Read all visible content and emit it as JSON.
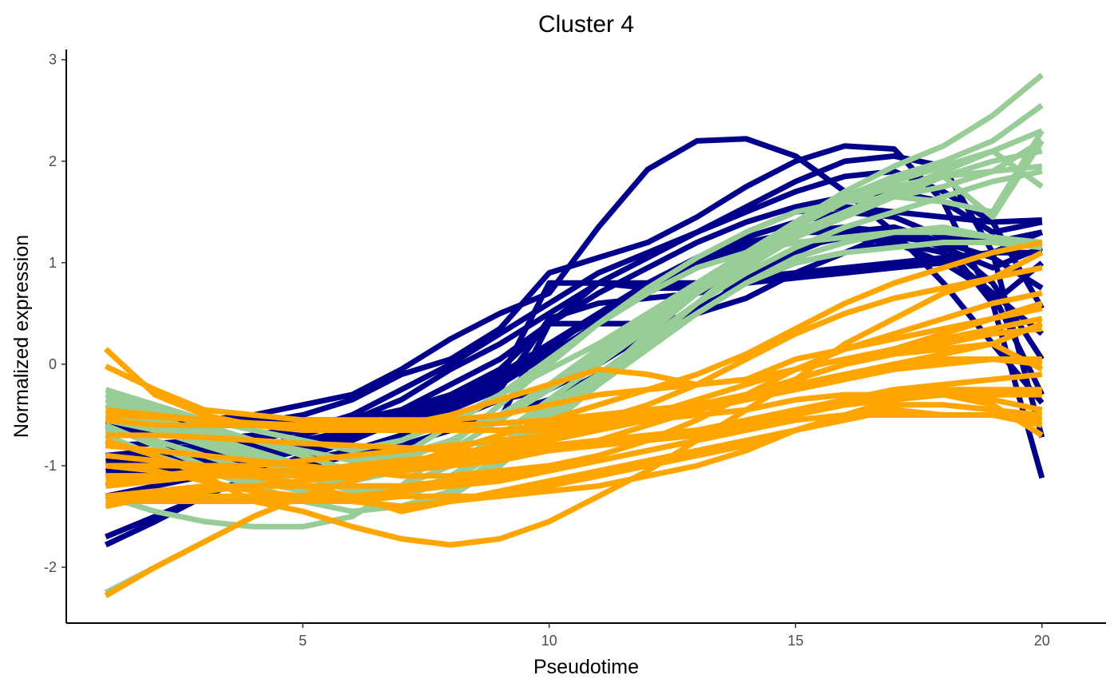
{
  "chart_data": {
    "type": "line",
    "title": "Cluster 4",
    "xlabel": "Pseudotime",
    "ylabel": "Normalized expression",
    "xlim": [
      0.2,
      21.3
    ],
    "ylim": [
      -2.55,
      3.1
    ],
    "xticks": [
      5,
      10,
      15,
      20
    ],
    "yticks": [
      -2,
      -1,
      0,
      1,
      2,
      3
    ],
    "grid": false,
    "legend": "none",
    "x": [
      1,
      2,
      3,
      4,
      5,
      6,
      7,
      8,
      9,
      10,
      11,
      12,
      13,
      14,
      15,
      16,
      17,
      18,
      19,
      20
    ],
    "group_colors": {
      "navy": "#00008b",
      "green": "#98cd98",
      "orange": "#ffa500"
    },
    "series": [
      {
        "group": "navy",
        "values": [
          -0.6,
          -0.6,
          -0.55,
          -0.5,
          -0.4,
          -0.3,
          -0.05,
          0.25,
          0.5,
          0.7,
          1.35,
          1.92,
          2.2,
          2.22,
          2.05,
          1.7,
          1.3,
          0.8,
          0.2,
          -0.38
        ]
      },
      {
        "group": "navy",
        "values": [
          -0.6,
          -0.6,
          -0.6,
          -0.58,
          -0.5,
          -0.35,
          -0.1,
          0.05,
          0.35,
          0.9,
          1.05,
          1.2,
          1.45,
          1.75,
          2.0,
          2.15,
          2.12,
          1.6,
          0.6,
          -1.12
        ]
      },
      {
        "group": "navy",
        "values": [
          -0.9,
          -0.85,
          -0.8,
          -0.75,
          -0.65,
          -0.5,
          -0.25,
          0.0,
          0.3,
          0.6,
          0.9,
          1.1,
          1.3,
          1.55,
          1.8,
          2.0,
          2.05,
          1.95,
          1.1,
          -0.72
        ]
      },
      {
        "group": "navy",
        "values": [
          -1.0,
          -0.95,
          -0.9,
          -0.85,
          -0.7,
          -0.55,
          -0.35,
          -0.05,
          0.2,
          0.5,
          0.8,
          1.05,
          1.3,
          1.5,
          1.7,
          1.85,
          1.9,
          1.7,
          1.4,
          0.55
        ]
      },
      {
        "group": "navy",
        "values": [
          -1.1,
          -1.05,
          -1.0,
          -0.95,
          -0.85,
          -0.7,
          -0.45,
          -0.2,
          0.05,
          0.4,
          0.7,
          0.95,
          1.2,
          1.4,
          1.55,
          1.65,
          1.7,
          1.6,
          1.3,
          1.4
        ]
      },
      {
        "group": "navy",
        "values": [
          -1.7,
          -1.5,
          -1.3,
          -1.1,
          -0.9,
          -0.7,
          -0.5,
          -0.35,
          -0.15,
          0.15,
          0.5,
          0.8,
          1.05,
          1.25,
          1.4,
          1.5,
          1.45,
          1.25,
          1.2,
          1.3
        ]
      },
      {
        "group": "navy",
        "values": [
          -1.78,
          -1.55,
          -1.3,
          -1.1,
          -0.92,
          -0.75,
          -0.55,
          -0.35,
          -0.1,
          0.2,
          0.45,
          0.7,
          0.95,
          1.15,
          1.3,
          1.35,
          1.3,
          1.15,
          0.95,
          1.15
        ]
      },
      {
        "group": "navy",
        "values": [
          -0.8,
          -0.78,
          -0.75,
          -0.7,
          -0.62,
          -0.55,
          -0.45,
          -0.3,
          -0.05,
          0.4,
          0.8,
          0.75,
          0.75,
          0.8,
          0.85,
          0.9,
          0.95,
          1.0,
          1.1,
          1.3
        ]
      },
      {
        "group": "navy",
        "values": [
          -0.95,
          -0.9,
          -0.85,
          -0.8,
          -0.75,
          -0.65,
          -0.5,
          -0.35,
          -0.15,
          0.8,
          0.8,
          0.8,
          0.8,
          0.85,
          0.9,
          0.95,
          1.0,
          1.05,
          1.1,
          1.1
        ]
      },
      {
        "group": "navy",
        "values": [
          -1.05,
          -1.0,
          -0.95,
          -0.9,
          -0.8,
          -0.7,
          -0.6,
          -0.45,
          -0.25,
          0.45,
          0.6,
          0.65,
          0.7,
          0.8,
          1.0,
          1.1,
          1.2,
          1.0,
          0.7,
          0.3
        ]
      },
      {
        "group": "navy",
        "values": [
          -1.2,
          -1.1,
          -1.05,
          -1.0,
          -0.95,
          -0.85,
          -0.7,
          -0.55,
          -0.35,
          -0.25,
          0.0,
          0.3,
          0.55,
          0.8,
          1.1,
          1.3,
          1.35,
          1.2,
          0.8,
          0.05
        ]
      },
      {
        "group": "navy",
        "values": [
          -1.3,
          -1.2,
          -1.1,
          -1.05,
          -1.0,
          -0.9,
          -0.8,
          -0.65,
          -0.5,
          -0.35,
          -0.1,
          0.2,
          0.5,
          0.85,
          1.15,
          1.25,
          1.2,
          1.1,
          0.7,
          -0.3
        ]
      },
      {
        "group": "navy",
        "values": [
          -0.55,
          -0.55,
          -0.55,
          -0.55,
          -0.55,
          -0.55,
          -0.55,
          -0.55,
          -0.55,
          0.4,
          0.4,
          0.4,
          0.5,
          0.65,
          0.9,
          1.1,
          1.3,
          1.2,
          0.6,
          1.0
        ]
      },
      {
        "group": "navy",
        "values": [
          -0.65,
          -0.65,
          -0.6,
          -0.6,
          -0.6,
          -0.6,
          -0.55,
          -0.4,
          -0.2,
          0.1,
          0.4,
          0.7,
          1.0,
          1.3,
          1.5,
          1.55,
          1.5,
          1.45,
          1.4,
          1.42
        ]
      },
      {
        "group": "navy",
        "values": [
          -0.9,
          -0.9,
          -0.9,
          -0.85,
          -0.8,
          -0.7,
          -0.55,
          -0.35,
          -0.1,
          0.2,
          0.5,
          0.75,
          1.0,
          1.2,
          1.3,
          1.3,
          1.25,
          1.2,
          1.05,
          0.75
        ]
      },
      {
        "group": "green",
        "values": [
          -0.25,
          -0.4,
          -0.55,
          -0.65,
          -0.75,
          -0.85,
          -0.75,
          -0.55,
          -0.3,
          -0.05,
          0.2,
          0.5,
          0.8,
          1.1,
          1.4,
          1.7,
          1.95,
          2.15,
          2.45,
          2.85
        ]
      },
      {
        "group": "green",
        "values": [
          -0.3,
          -0.45,
          -0.6,
          -0.75,
          -0.9,
          -1.05,
          -0.95,
          -0.75,
          -0.5,
          -0.2,
          0.1,
          0.45,
          0.8,
          1.1,
          1.4,
          1.65,
          1.85,
          2.0,
          2.2,
          2.55
        ]
      },
      {
        "group": "green",
        "values": [
          -0.35,
          -0.5,
          -0.7,
          -0.85,
          -1.0,
          -1.15,
          -1.05,
          -0.85,
          -0.55,
          -0.25,
          0.05,
          0.4,
          0.75,
          1.05,
          1.35,
          1.6,
          1.8,
          1.95,
          2.1,
          2.3
        ]
      },
      {
        "group": "green",
        "values": [
          -0.4,
          -0.55,
          -0.75,
          -0.95,
          -1.1,
          -1.25,
          -1.2,
          -1.0,
          -0.7,
          -0.4,
          -0.1,
          0.25,
          0.6,
          0.95,
          1.25,
          1.5,
          1.7,
          1.85,
          2.0,
          2.1
        ]
      },
      {
        "group": "green",
        "values": [
          -0.6,
          -0.8,
          -1.0,
          -1.15,
          -1.25,
          -1.35,
          -1.3,
          -1.15,
          -0.85,
          -0.5,
          -0.15,
          0.3,
          0.7,
          1.1,
          1.4,
          1.6,
          1.75,
          1.85,
          1.9,
          1.95
        ]
      },
      {
        "group": "green",
        "values": [
          -0.7,
          -0.9,
          -1.05,
          -1.2,
          -1.35,
          -1.45,
          -1.4,
          -1.25,
          -0.95,
          -0.55,
          -0.2,
          0.2,
          0.6,
          1.0,
          1.3,
          1.5,
          1.7,
          1.9,
          2.1,
          1.75
        ]
      },
      {
        "group": "green",
        "values": [
          -1.3,
          -1.45,
          -1.55,
          -1.6,
          -1.6,
          -1.5,
          -1.2,
          -0.8,
          -0.4,
          0.0,
          0.4,
          0.75,
          1.05,
          1.3,
          1.5,
          1.6,
          1.65,
          1.6,
          1.5,
          2.3
        ]
      },
      {
        "group": "green",
        "values": [
          -2.25,
          -2.0,
          -1.75,
          -1.5,
          -1.3,
          -1.1,
          -0.9,
          -0.6,
          -0.3,
          0.05,
          0.4,
          0.7,
          0.95,
          1.1,
          1.2,
          1.25,
          1.3,
          1.3,
          1.25,
          1.2
        ]
      },
      {
        "group": "green",
        "values": [
          -0.5,
          -0.6,
          -0.75,
          -0.9,
          -1.05,
          -1.2,
          -1.2,
          -1.0,
          -0.7,
          -0.35,
          0.0,
          0.35,
          0.7,
          1.0,
          1.3,
          1.5,
          1.65,
          1.75,
          1.9,
          2.2
        ]
      },
      {
        "group": "green",
        "values": [
          -0.55,
          -0.65,
          -0.8,
          -0.95,
          -1.1,
          -1.25,
          -1.3,
          -1.1,
          -0.8,
          -0.45,
          -0.1,
          0.25,
          0.6,
          0.9,
          1.15,
          1.35,
          1.5,
          1.65,
          1.8,
          1.9
        ]
      },
      {
        "group": "green",
        "values": [
          -0.45,
          -0.55,
          -0.65,
          -0.75,
          -0.85,
          -0.95,
          -0.9,
          -0.75,
          -0.5,
          -0.2,
          0.15,
          0.45,
          0.75,
          1.0,
          1.25,
          1.45,
          1.65,
          1.85,
          1.45,
          2.2
        ]
      },
      {
        "group": "green",
        "values": [
          -0.65,
          -0.75,
          -0.9,
          -1.05,
          -1.2,
          -1.35,
          -1.4,
          -1.25,
          -0.9,
          -0.5,
          -0.15,
          0.2,
          0.5,
          0.8,
          1.05,
          1.2,
          1.3,
          1.35,
          1.25,
          1.2
        ]
      },
      {
        "group": "green",
        "values": [
          -0.75,
          -0.9,
          -1.05,
          -1.15,
          -1.25,
          -1.35,
          -1.4,
          -1.3,
          -1.0,
          -0.6,
          -0.2,
          0.15,
          0.5,
          0.8,
          1.0,
          1.1,
          1.15,
          1.2,
          1.2,
          1.15
        ]
      },
      {
        "group": "orange",
        "values": [
          0.15,
          -0.3,
          -0.5,
          -0.6,
          -0.65,
          -0.65,
          -0.6,
          -0.5,
          -0.35,
          -0.2,
          -0.05,
          -0.1,
          -0.2,
          -0.15,
          0.05,
          0.15,
          0.25,
          0.35,
          0.45,
          0.6
        ]
      },
      {
        "group": "orange",
        "values": [
          -0.02,
          -0.25,
          -0.45,
          -0.5,
          -0.55,
          -0.55,
          -0.55,
          -0.55,
          -0.5,
          -0.4,
          -0.3,
          -0.25,
          -0.2,
          -0.15,
          -0.05,
          0.05,
          0.1,
          0.15,
          0.2,
          0.4
        ]
      },
      {
        "group": "orange",
        "values": [
          -2.28,
          -2.0,
          -1.75,
          -1.5,
          -1.3,
          -1.15,
          -1.0,
          -0.85,
          -0.7,
          -0.55,
          -0.4,
          -0.25,
          -0.1,
          0.1,
          0.35,
          0.6,
          0.8,
          0.95,
          1.1,
          1.2
        ]
      },
      {
        "group": "orange",
        "values": [
          -0.75,
          -0.9,
          -1.1,
          -1.35,
          -1.45,
          -1.6,
          -1.72,
          -1.78,
          -1.72,
          -1.55,
          -1.3,
          -1.05,
          -0.75,
          -0.45,
          -0.15,
          0.2,
          0.45,
          0.7,
          0.85,
          0.95
        ]
      },
      {
        "group": "orange",
        "values": [
          -1.4,
          -1.3,
          -1.25,
          -1.2,
          -1.15,
          -1.1,
          -1.0,
          -0.9,
          -0.8,
          -0.7,
          -0.55,
          -0.4,
          -0.2,
          0.05,
          0.3,
          0.5,
          0.65,
          0.75,
          0.85,
          1.1
        ]
      },
      {
        "group": "orange",
        "values": [
          -1.3,
          -1.25,
          -1.2,
          -1.2,
          -1.2,
          -1.2,
          -1.2,
          -1.15,
          -1.1,
          -1.0,
          -0.9,
          -0.75,
          -0.55,
          -0.3,
          -0.05,
          0.15,
          0.3,
          0.45,
          0.6,
          0.7
        ]
      },
      {
        "group": "orange",
        "values": [
          -1.2,
          -1.15,
          -1.1,
          -1.1,
          -1.1,
          -1.1,
          -1.05,
          -1.0,
          -0.95,
          -0.85,
          -0.75,
          -0.6,
          -0.45,
          -0.3,
          -0.15,
          0.0,
          0.1,
          0.25,
          0.35,
          0.45
        ]
      },
      {
        "group": "orange",
        "values": [
          -1.1,
          -1.1,
          -1.05,
          -1.05,
          -1.05,
          -1.0,
          -0.95,
          -0.9,
          -0.8,
          -0.7,
          -0.6,
          -0.5,
          -0.35,
          -0.2,
          -0.05,
          0.05,
          0.15,
          0.2,
          0.3,
          0.35
        ]
      },
      {
        "group": "orange",
        "values": [
          -1.0,
          -1.0,
          -1.0,
          -1.0,
          -0.95,
          -0.9,
          -0.85,
          -0.8,
          -0.75,
          -0.7,
          -0.6,
          -0.5,
          -0.4,
          -0.3,
          -0.2,
          -0.1,
          0.0,
          0.05,
          0.05,
          0.0
        ]
      },
      {
        "group": "orange",
        "values": [
          -1.15,
          -1.15,
          -1.1,
          -1.1,
          -1.05,
          -1.0,
          -0.95,
          -0.9,
          -0.85,
          -0.75,
          -0.65,
          -0.55,
          -0.45,
          -0.35,
          -0.25,
          -0.15,
          -0.05,
          0.0,
          0.05,
          0.05
        ]
      },
      {
        "group": "orange",
        "values": [
          -1.3,
          -1.3,
          -1.3,
          -1.3,
          -1.3,
          -1.3,
          -1.25,
          -1.2,
          -1.15,
          -1.05,
          -0.95,
          -0.85,
          -0.75,
          -0.6,
          -0.45,
          -0.35,
          -0.25,
          -0.2,
          -0.15,
          -0.1
        ]
      },
      {
        "group": "orange",
        "values": [
          -1.35,
          -1.35,
          -1.35,
          -1.35,
          -1.35,
          -1.35,
          -1.3,
          -1.3,
          -1.3,
          -1.25,
          -1.2,
          -1.1,
          -1.0,
          -0.85,
          -0.65,
          -0.5,
          -0.35,
          -0.25,
          -0.3,
          -0.3
        ]
      },
      {
        "group": "orange",
        "values": [
          -1.0,
          -1.05,
          -1.15,
          -1.25,
          -1.3,
          -1.35,
          -1.4,
          -1.35,
          -1.3,
          -1.2,
          -1.1,
          -1.0,
          -0.9,
          -0.8,
          -0.65,
          -0.5,
          -0.4,
          -0.4,
          -0.45,
          -0.5
        ]
      },
      {
        "group": "orange",
        "values": [
          -0.9,
          -0.95,
          -1.0,
          -1.1,
          -1.2,
          -1.3,
          -1.45,
          -1.35,
          -1.25,
          -1.15,
          -1.05,
          -0.95,
          -0.85,
          -0.75,
          -0.65,
          -0.55,
          -0.45,
          -0.5,
          -0.5,
          -0.6
        ]
      },
      {
        "group": "orange",
        "values": [
          -0.8,
          -0.85,
          -0.9,
          -0.95,
          -1.0,
          -1.05,
          -1.1,
          -1.1,
          -1.05,
          -1.0,
          -0.95,
          -0.85,
          -0.75,
          -0.65,
          -0.55,
          -0.5,
          -0.5,
          -0.5,
          -0.5,
          -0.55
        ]
      },
      {
        "group": "orange",
        "values": [
          -0.7,
          -0.7,
          -0.72,
          -0.75,
          -0.78,
          -0.8,
          -0.82,
          -0.85,
          -0.85,
          -0.8,
          -0.75,
          -0.7,
          -0.65,
          -0.55,
          -0.45,
          -0.4,
          -0.35,
          -0.3,
          -0.4,
          -0.7
        ]
      },
      {
        "group": "orange",
        "values": [
          -0.5,
          -0.52,
          -0.55,
          -0.6,
          -0.6,
          -0.6,
          -0.62,
          -0.65,
          -0.65,
          -0.65,
          -0.6,
          -0.55,
          -0.5,
          -0.45,
          -0.35,
          -0.3,
          -0.3,
          -0.3,
          -0.35,
          -0.45
        ]
      },
      {
        "group": "orange",
        "values": [
          -0.45,
          -0.5,
          -0.55,
          -0.58,
          -0.6,
          -0.6,
          -0.6,
          -0.6,
          -0.58,
          -0.55,
          -0.5,
          -0.45,
          -0.4,
          -0.3,
          -0.2,
          -0.1,
          0.0,
          0.1,
          0.2,
          -0.05
        ]
      },
      {
        "group": "orange",
        "values": [
          -0.55,
          -0.6,
          -0.6,
          -0.6,
          -0.62,
          -0.65,
          -0.65,
          -0.65,
          -0.65,
          -0.6,
          -0.55,
          -0.5,
          -0.4,
          -0.3,
          -0.15,
          0.0,
          0.15,
          0.3,
          0.45,
          0.55
        ]
      },
      {
        "group": "orange",
        "values": [
          -1.1,
          -1.1,
          -1.1,
          -1.1,
          -1.08,
          -1.05,
          -1.0,
          -0.95,
          -0.9,
          -0.85,
          -0.8,
          -0.75,
          -0.7,
          -0.6,
          -0.5,
          -0.4,
          -0.3,
          -0.25,
          -0.25,
          -0.25
        ]
      }
    ]
  }
}
